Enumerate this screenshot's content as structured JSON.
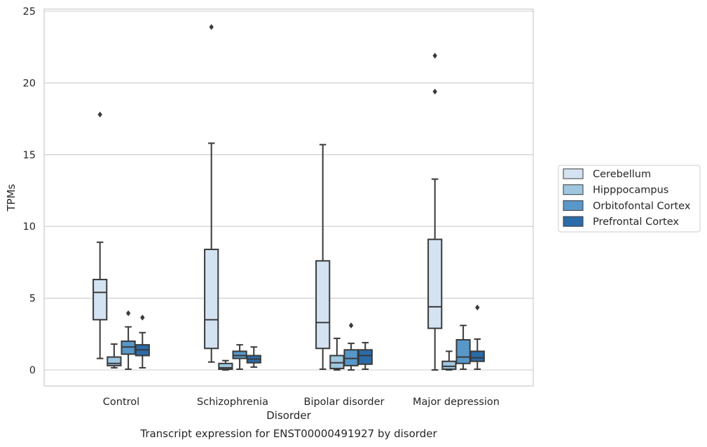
{
  "chart_data": {
    "type": "boxplot",
    "title": "Transcript expression for ENST00000491927 by disorder",
    "xlabel": "Disorder",
    "ylabel": "TPMs",
    "ylim": [
      -1.1,
      25.3
    ],
    "yticks": [
      0,
      5,
      10,
      15,
      20,
      25
    ],
    "categories": [
      "Control",
      "Schizophrenia",
      "Bipolar disorder",
      "Major depression"
    ],
    "grid": "horizontal",
    "legend_position": "right",
    "series": [
      {
        "name": "Cerebellum",
        "color": "#d4e3f2",
        "boxes": [
          {
            "whisker_low": 0.8,
            "q1": 3.5,
            "median": 5.4,
            "q3": 6.3,
            "whisker_high": 8.9,
            "outliers": [
              17.8
            ]
          },
          {
            "whisker_low": 0.55,
            "q1": 1.5,
            "median": 3.5,
            "q3": 8.4,
            "whisker_high": 15.8,
            "outliers": [
              23.9
            ]
          },
          {
            "whisker_low": 0.05,
            "q1": 1.5,
            "median": 3.3,
            "q3": 7.6,
            "whisker_high": 15.7,
            "outliers": []
          },
          {
            "whisker_low": 0.0,
            "q1": 2.9,
            "median": 4.4,
            "q3": 9.1,
            "whisker_high": 13.3,
            "outliers": [
              19.4,
              21.9
            ]
          }
        ]
      },
      {
        "name": "Hipppocampus",
        "color": "#9fc7e0",
        "boxes": [
          {
            "whisker_low": 0.15,
            "q1": 0.3,
            "median": 0.45,
            "q3": 0.9,
            "whisker_high": 1.8,
            "outliers": []
          },
          {
            "whisker_low": 0.0,
            "q1": 0.05,
            "median": 0.15,
            "q3": 0.45,
            "whisker_high": 0.65,
            "outliers": []
          },
          {
            "whisker_low": 0.0,
            "q1": 0.1,
            "median": 0.5,
            "q3": 1.0,
            "whisker_high": 2.2,
            "outliers": []
          },
          {
            "whisker_low": 0.0,
            "q1": 0.05,
            "median": 0.25,
            "q3": 0.6,
            "whisker_high": 1.3,
            "outliers": []
          }
        ]
      },
      {
        "name": "Orbitofontal Cortex",
        "color": "#5898c9",
        "boxes": [
          {
            "whisker_low": 0.05,
            "q1": 1.1,
            "median": 1.6,
            "q3": 2.0,
            "whisker_high": 3.0,
            "outliers": [
              3.95
            ]
          },
          {
            "whisker_low": 0.05,
            "q1": 0.8,
            "median": 1.0,
            "q3": 1.3,
            "whisker_high": 1.75,
            "outliers": []
          },
          {
            "whisker_low": 0.0,
            "q1": 0.3,
            "median": 0.8,
            "q3": 1.4,
            "whisker_high": 1.85,
            "outliers": [
              3.1
            ]
          },
          {
            "whisker_low": 0.05,
            "q1": 0.45,
            "median": 0.9,
            "q3": 2.1,
            "whisker_high": 3.1,
            "outliers": []
          }
        ]
      },
      {
        "name": "Prefrontal Cortex",
        "color": "#2b6ba8",
        "boxes": [
          {
            "whisker_low": 0.15,
            "q1": 1.0,
            "median": 1.4,
            "q3": 1.75,
            "whisker_high": 2.6,
            "outliers": [
              3.65
            ]
          },
          {
            "whisker_low": 0.2,
            "q1": 0.5,
            "median": 0.75,
            "q3": 1.0,
            "whisker_high": 1.6,
            "outliers": []
          },
          {
            "whisker_low": 0.05,
            "q1": 0.4,
            "median": 1.0,
            "q3": 1.4,
            "whisker_high": 1.9,
            "outliers": []
          },
          {
            "whisker_low": 0.05,
            "q1": 0.6,
            "median": 0.85,
            "q3": 1.3,
            "whisker_high": 2.15,
            "outliers": [
              4.35
            ]
          }
        ]
      }
    ]
  }
}
